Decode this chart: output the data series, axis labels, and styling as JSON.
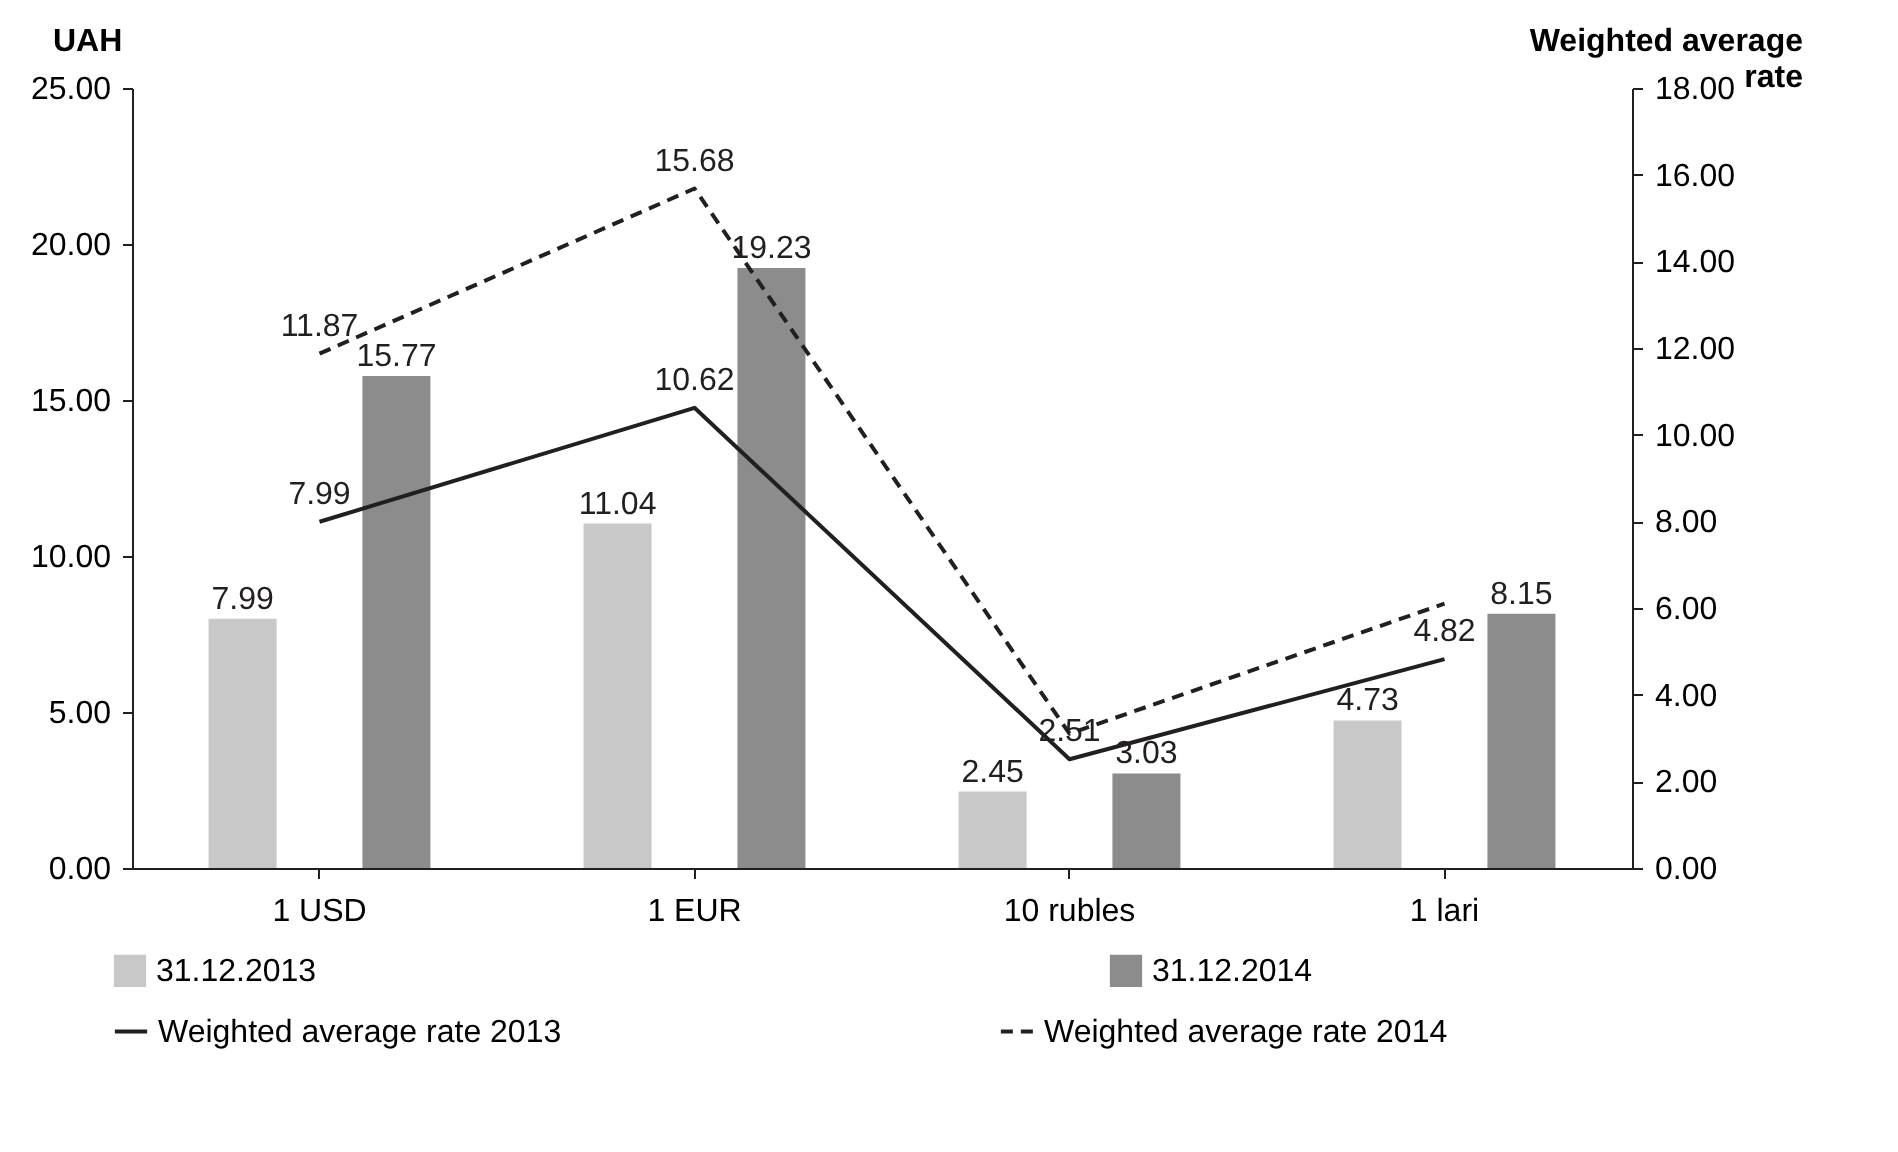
{
  "chart_data": {
    "type": "bar",
    "ylabel": "UAH",
    "y2label": "Weighted average rate",
    "categories": [
      "1 USD",
      "1 EUR",
      "10 rubles",
      "1 lari"
    ],
    "series": [
      {
        "name": "31.12.2013",
        "color": "#c8c8c8",
        "values": [
          7.99,
          11.04,
          2.45,
          4.73
        ],
        "value_labels": [
          "7.99",
          "11.04",
          "2.45",
          "4.73"
        ]
      },
      {
        "name": "31.12.2014",
        "color": "#8c8c8c",
        "values": [
          15.77,
          19.23,
          3.03,
          8.15
        ],
        "value_labels": [
          "15.77",
          "19.23",
          "3.03",
          "8.15"
        ]
      },
      {
        "name": "Weighted average rate 2013",
        "type": "line",
        "axis": "y2",
        "color": "#231f20",
        "line_style": "solid",
        "values": [
          7.99,
          10.62,
          2.51,
          4.82
        ],
        "value_labels": [
          "7.99",
          "10.62",
          "2.51",
          "4.82"
        ]
      },
      {
        "name": "Weighted average rate 2014",
        "type": "line",
        "axis": "y2",
        "color": "#231f20",
        "line_style": "dashed",
        "values": [
          11.87,
          15.68,
          3.1,
          6.1
        ],
        "value_labels": [
          "11.87",
          "15.68",
          null,
          null
        ]
      }
    ],
    "ylim": [
      0,
      25
    ],
    "yticks": [
      {
        "value": 0,
        "label": "0.00"
      },
      {
        "value": 5,
        "label": "5.00"
      },
      {
        "value": 10,
        "label": "10.00"
      },
      {
        "value": 15,
        "label": "15.00"
      },
      {
        "value": 20,
        "label": "20.00"
      },
      {
        "value": 25,
        "label": "25.00"
      }
    ],
    "y2lim": [
      0,
      18
    ],
    "y2ticks": [
      {
        "value": 0,
        "label": "0.00"
      },
      {
        "value": 2,
        "label": "2.00"
      },
      {
        "value": 4,
        "label": "4.00"
      },
      {
        "value": 6,
        "label": "6.00"
      },
      {
        "value": 8,
        "label": "8.00"
      },
      {
        "value": 10,
        "label": "10.00"
      },
      {
        "value": 12,
        "label": "12.00"
      },
      {
        "value": 14,
        "label": "14.00"
      },
      {
        "value": 16,
        "label": "16.00"
      },
      {
        "value": 18,
        "label": "18.00"
      }
    ],
    "grid": false,
    "legend": "bottom"
  }
}
